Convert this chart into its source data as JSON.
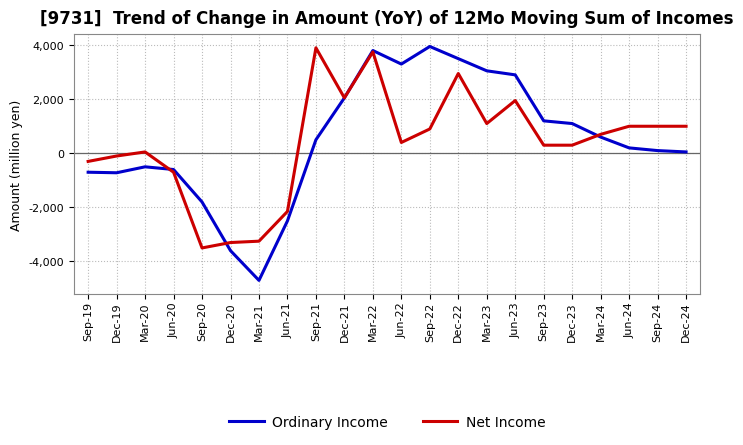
{
  "title": "[9731]  Trend of Change in Amount (YoY) of 12Mo Moving Sum of Incomes",
  "ylabel": "Amount (million yen)",
  "xlabels": [
    "Sep-19",
    "Dec-19",
    "Mar-20",
    "Jun-20",
    "Sep-20",
    "Dec-20",
    "Mar-21",
    "Jun-21",
    "Sep-21",
    "Dec-21",
    "Mar-22",
    "Jun-22",
    "Sep-22",
    "Dec-22",
    "Mar-23",
    "Jun-23",
    "Sep-23",
    "Dec-23",
    "Mar-24",
    "Jun-24",
    "Sep-24",
    "Dec-24"
  ],
  "ordinary_income": [
    -700,
    -720,
    -500,
    -600,
    -1800,
    -3600,
    -4700,
    -2500,
    500,
    2050,
    3800,
    3300,
    3950,
    3500,
    3050,
    2900,
    1200,
    1100,
    600,
    200,
    100,
    50
  ],
  "net_income": [
    -300,
    -100,
    50,
    -700,
    -3500,
    -3300,
    -3250,
    -2150,
    3900,
    2050,
    3750,
    400,
    900,
    2950,
    1100,
    1950,
    300,
    300,
    700,
    1000,
    1000,
    1000
  ],
  "ordinary_income_color": "#0000cc",
  "net_income_color": "#cc0000",
  "ylim": [
    -5200,
    4400
  ],
  "yticks": [
    -4000,
    -2000,
    0,
    2000,
    4000
  ],
  "bg_color": "#ffffff",
  "grid_color": "#bbbbbb",
  "linewidth": 2.2,
  "legend_labels": [
    "Ordinary Income",
    "Net Income"
  ],
  "title_fontsize": 12,
  "ylabel_fontsize": 9,
  "tick_fontsize": 8
}
